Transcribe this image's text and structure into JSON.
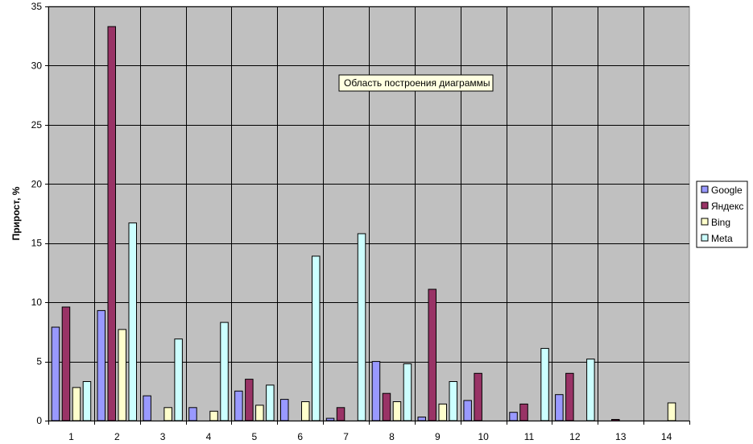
{
  "chart_data": {
    "type": "bar",
    "ylabel": "Прирост, %",
    "ylim": [
      0,
      35
    ],
    "yticks": [
      0,
      5,
      10,
      15,
      20,
      25,
      30,
      35
    ],
    "categories": [
      "1",
      "2",
      "3",
      "4",
      "5",
      "6",
      "7",
      "8",
      "9",
      "10",
      "11",
      "12",
      "13",
      "14"
    ],
    "grid": true,
    "legend_position": "right",
    "plot_background": "#c0c0c0",
    "series": [
      {
        "name": "Google",
        "color": "#9999ff",
        "values": [
          7.9,
          9.3,
          2.1,
          1.1,
          2.5,
          1.8,
          0.2,
          5.0,
          0.3,
          1.7,
          0.7,
          2.2,
          0,
          0
        ]
      },
      {
        "name": "Яндекс",
        "color": "#993366",
        "values": [
          9.6,
          33.3,
          0,
          0,
          3.5,
          0,
          1.1,
          2.3,
          11.1,
          4.0,
          1.4,
          4.0,
          0.1,
          0
        ]
      },
      {
        "name": "Bing",
        "color": "#ffffcc",
        "values": [
          2.8,
          7.7,
          1.1,
          0.8,
          1.3,
          1.6,
          0,
          1.6,
          1.4,
          0,
          0,
          0,
          0,
          1.5
        ]
      },
      {
        "name": "Meta",
        "color": "#ccffff",
        "values": [
          3.3,
          16.7,
          6.9,
          8.3,
          3.0,
          13.9,
          15.8,
          4.8,
          3.3,
          0,
          6.1,
          5.2,
          0,
          0
        ]
      }
    ],
    "tooltip": "Область построения диаграммы"
  }
}
